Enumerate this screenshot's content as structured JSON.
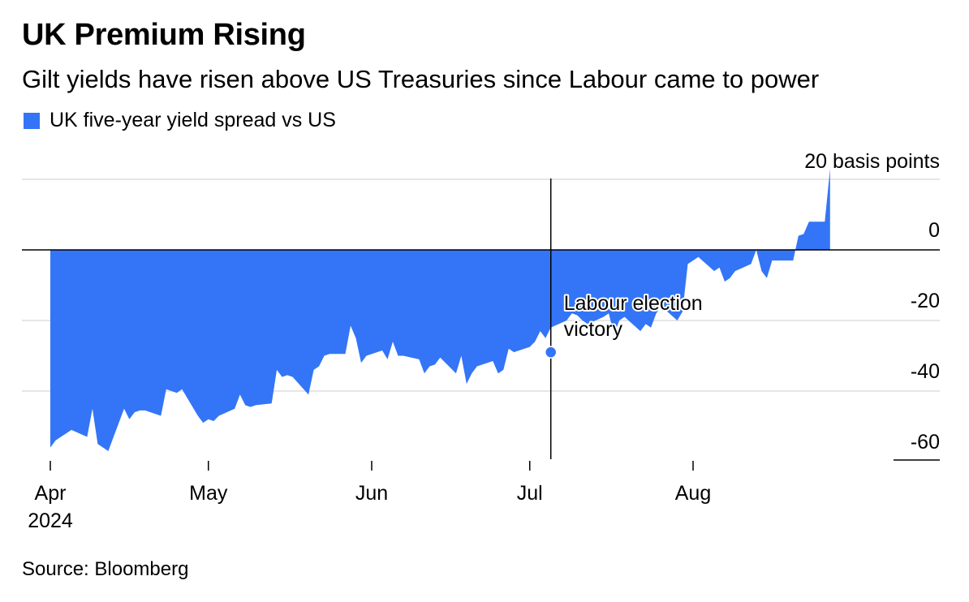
{
  "title": "UK Premium Rising",
  "subtitle": "Gilt yields have risen above US Treasuries since Labour came to power",
  "source": "Source: Bloomberg",
  "colors": {
    "area": "#3375f6",
    "grid": "#e6e6e6",
    "axis": "#000000",
    "annotation_line": "#000000"
  },
  "chart_data": {
    "type": "area",
    "series": [
      {
        "name": "UK five-year yield spread vs US",
        "x": [
          "2024-04-01",
          "2024-04-02",
          "2024-04-03",
          "2024-04-04",
          "2024-04-05",
          "2024-04-08",
          "2024-04-09",
          "2024-04-10",
          "2024-04-11",
          "2024-04-12",
          "2024-04-15",
          "2024-04-16",
          "2024-04-17",
          "2024-04-18",
          "2024-04-19",
          "2024-04-22",
          "2024-04-23",
          "2024-04-24",
          "2024-04-25",
          "2024-04-26",
          "2024-04-29",
          "2024-04-30",
          "2024-05-01",
          "2024-05-02",
          "2024-05-03",
          "2024-05-06",
          "2024-05-07",
          "2024-05-08",
          "2024-05-09",
          "2024-05-10",
          "2024-05-13",
          "2024-05-14",
          "2024-05-15",
          "2024-05-16",
          "2024-05-17",
          "2024-05-20",
          "2024-05-21",
          "2024-05-22",
          "2024-05-23",
          "2024-05-24",
          "2024-05-27",
          "2024-05-28",
          "2024-05-29",
          "2024-05-30",
          "2024-05-31",
          "2024-06-03",
          "2024-06-04",
          "2024-06-05",
          "2024-06-06",
          "2024-06-07",
          "2024-06-10",
          "2024-06-11",
          "2024-06-12",
          "2024-06-13",
          "2024-06-14",
          "2024-06-17",
          "2024-06-18",
          "2024-06-19",
          "2024-06-20",
          "2024-06-21",
          "2024-06-24",
          "2024-06-25",
          "2024-06-26",
          "2024-06-27",
          "2024-06-28",
          "2024-07-01",
          "2024-07-02",
          "2024-07-03",
          "2024-07-04",
          "2024-07-05",
          "2024-07-08",
          "2024-07-09",
          "2024-07-10",
          "2024-07-11",
          "2024-07-12",
          "2024-07-15",
          "2024-07-16",
          "2024-07-17",
          "2024-07-18",
          "2024-07-19",
          "2024-07-22",
          "2024-07-23",
          "2024-07-24",
          "2024-07-25",
          "2024-07-26",
          "2024-07-29",
          "2024-07-30",
          "2024-07-31",
          "2024-08-01",
          "2024-08-02",
          "2024-08-05",
          "2024-08-06",
          "2024-08-07",
          "2024-08-08",
          "2024-08-09",
          "2024-08-12",
          "2024-08-13",
          "2024-08-14",
          "2024-08-15",
          "2024-08-16",
          "2024-08-19",
          "2024-08-20",
          "2024-08-21",
          "2024-08-22",
          "2024-08-23",
          "2024-08-26",
          "2024-08-27"
        ],
        "values": [
          -56,
          -54,
          -53,
          -52,
          -51,
          -53,
          -45,
          -55,
          -56,
          -57,
          -45,
          -48,
          -46,
          -45.5,
          -45.5,
          -47,
          -39.5,
          -40,
          -40.5,
          -39.5,
          -47,
          -49,
          -48,
          -48.5,
          -47,
          -45,
          -41,
          -44,
          -44.5,
          -44,
          -43.5,
          -34,
          -36,
          -35.5,
          -36,
          -41,
          -34,
          -33,
          -30,
          -29.5,
          -29.5,
          -21.5,
          -25,
          -32,
          -30,
          -28.5,
          -31,
          -26,
          -30,
          -30,
          -31,
          -35,
          -33,
          -32.5,
          -30.5,
          -35,
          -30,
          -38,
          -35,
          -33,
          -31.5,
          -35,
          -34,
          -28,
          -29,
          -27.5,
          -26,
          -23,
          -25,
          -22,
          -20,
          -18,
          -18.5,
          -20,
          -21,
          -19,
          -18,
          -24,
          -20,
          -19,
          -23,
          -21,
          -22,
          -18,
          -16,
          -20,
          -17.5,
          -4,
          -3,
          -2,
          -6,
          -5,
          -9,
          -8,
          -6,
          -4,
          0,
          -6,
          -8,
          -3,
          -3,
          -3,
          4,
          4.5,
          8,
          8,
          23
        ],
        "values_note": ""
      }
    ],
    "y_label": "20 basis points",
    "y_ticks": [
      0,
      -20,
      -40,
      -60
    ],
    "ylim": [
      -60,
      23
    ],
    "x_ticks": [
      {
        "date": "2024-04-01",
        "label": "Apr",
        "sublabel": "2024"
      },
      {
        "date": "2024-05-01",
        "label": "May",
        "sublabel": ""
      },
      {
        "date": "2024-06-01",
        "label": "Jun",
        "sublabel": ""
      },
      {
        "date": "2024-07-01",
        "label": "Jul",
        "sublabel": ""
      },
      {
        "date": "2024-08-01",
        "label": "Aug",
        "sublabel": ""
      }
    ],
    "xlim": [
      "2024-03-31",
      "2024-09-02"
    ],
    "annotation": {
      "date": "2024-07-05",
      "value": -29,
      "label_line1": "Labour election",
      "label_line2": "victory"
    },
    "grid": true,
    "legend_placement": "top-left"
  }
}
